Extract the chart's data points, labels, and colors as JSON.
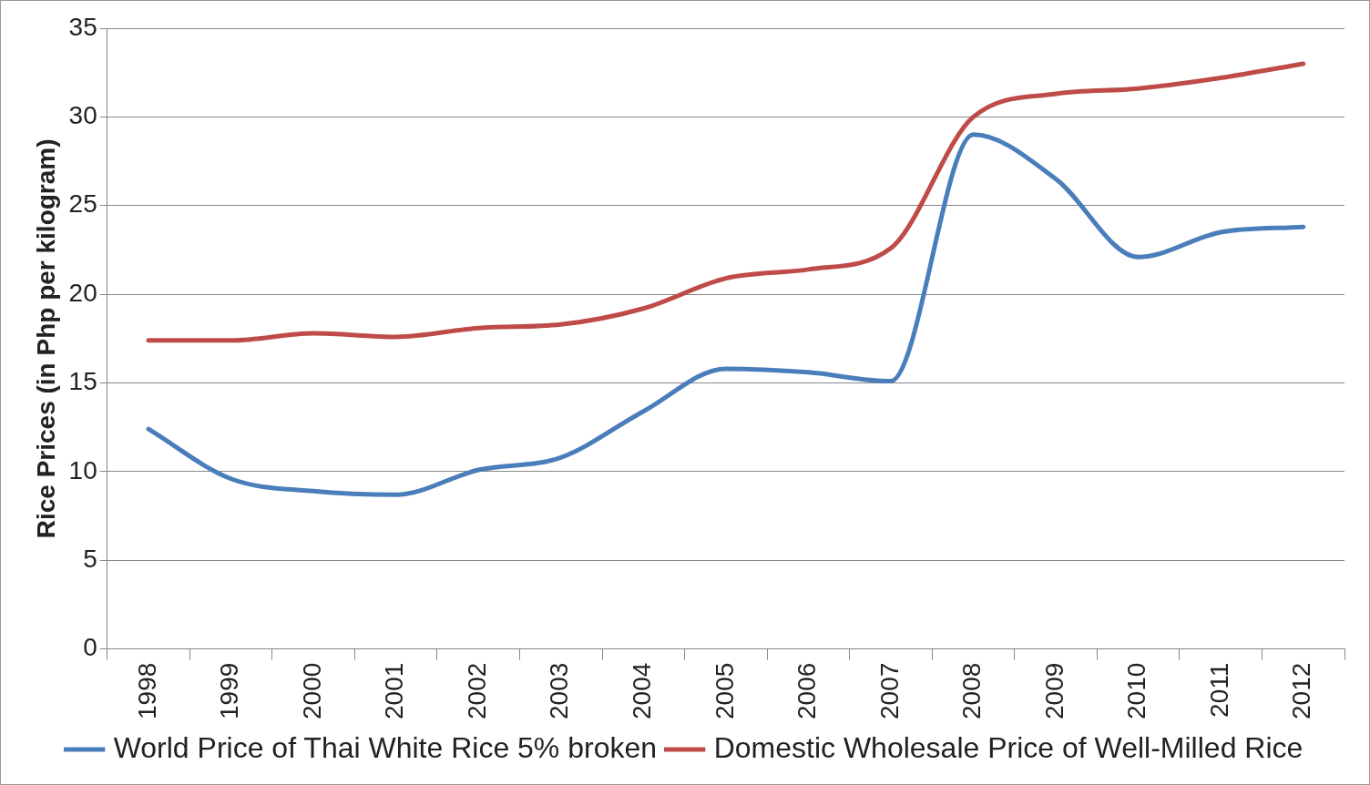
{
  "chart_data": {
    "type": "line",
    "ylabel": "Rice Prices (in Php per kilogram)",
    "categories": [
      "1998",
      "1999",
      "2000",
      "2001",
      "2002",
      "2003",
      "2004",
      "2005",
      "2006",
      "2007",
      "2008",
      "2009",
      "2010",
      "2011",
      "2012"
    ],
    "series": [
      {
        "name": "World Price of Thai White Rice 5% broken",
        "color": "#4a7ebb",
        "values": [
          12.4,
          9.6,
          8.9,
          8.7,
          10.1,
          10.8,
          13.4,
          15.8,
          15.6,
          15.1,
          29.0,
          26.5,
          22.1,
          23.5,
          23.8
        ]
      },
      {
        "name": "Domestic Wholesale Price of Well-Milled Rice",
        "color": "#be4b48",
        "values": [
          17.4,
          17.4,
          17.8,
          17.6,
          18.1,
          18.3,
          19.2,
          20.9,
          21.4,
          22.6,
          30.0,
          31.3,
          31.6,
          32.2,
          33.0
        ]
      }
    ],
    "ylim": [
      0,
      35
    ],
    "yticks": [
      0,
      5,
      10,
      15,
      20,
      25,
      30,
      35
    ],
    "grid": "y",
    "legend": "bottom",
    "marker": "none",
    "line_style": "solid"
  }
}
